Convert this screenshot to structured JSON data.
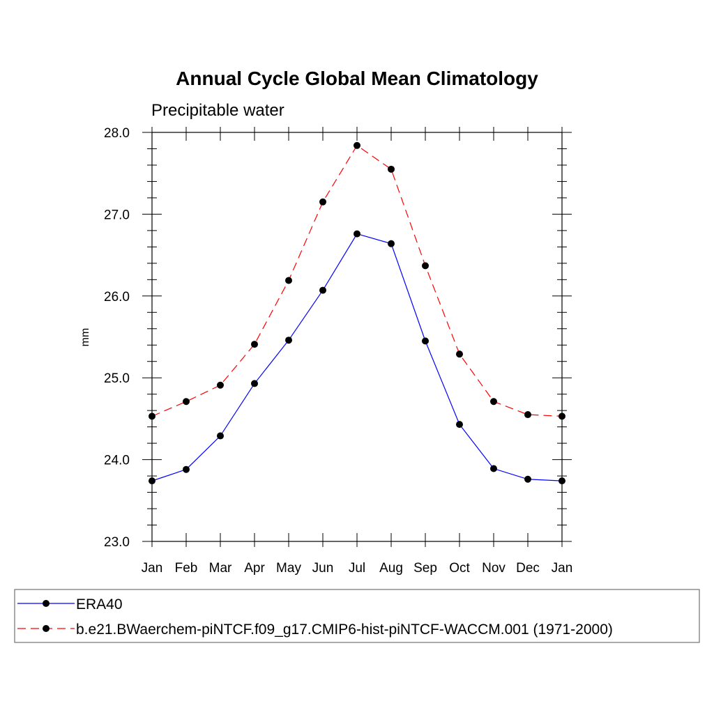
{
  "chart_data": {
    "type": "line",
    "title": "Annual Cycle Global Mean Climatology",
    "subtitle": "Precipitable water",
    "xlabel": "",
    "ylabel": "mm",
    "categories": [
      "Jan",
      "Feb",
      "Mar",
      "Apr",
      "May",
      "Jun",
      "Jul",
      "Aug",
      "Sep",
      "Oct",
      "Nov",
      "Dec",
      "Jan"
    ],
    "ylim": [
      23.0,
      28.0
    ],
    "yticks": [
      "23.0",
      "24.0",
      "25.0",
      "26.0",
      "27.0",
      "28.0"
    ],
    "grid": false,
    "legend_position": "bottom",
    "series": [
      {
        "name": "ERA40",
        "color": "#0000ff",
        "dash": "solid",
        "marker": "filled-circle",
        "values": [
          23.74,
          23.88,
          24.29,
          24.93,
          25.46,
          26.07,
          26.76,
          26.64,
          25.45,
          24.43,
          23.89,
          23.76,
          23.74
        ]
      },
      {
        "name": "b.e21.BWaerchem-piNTCF.f09_g17.CMIP6-hist-piNTCF-WACCM.001 (1971-2000)",
        "color": "#ff0000",
        "dash": "dashed",
        "marker": "filled-circle",
        "values": [
          24.53,
          24.71,
          24.91,
          25.41,
          26.19,
          27.15,
          27.84,
          27.55,
          26.37,
          25.29,
          24.71,
          24.55,
          24.53
        ]
      }
    ]
  }
}
